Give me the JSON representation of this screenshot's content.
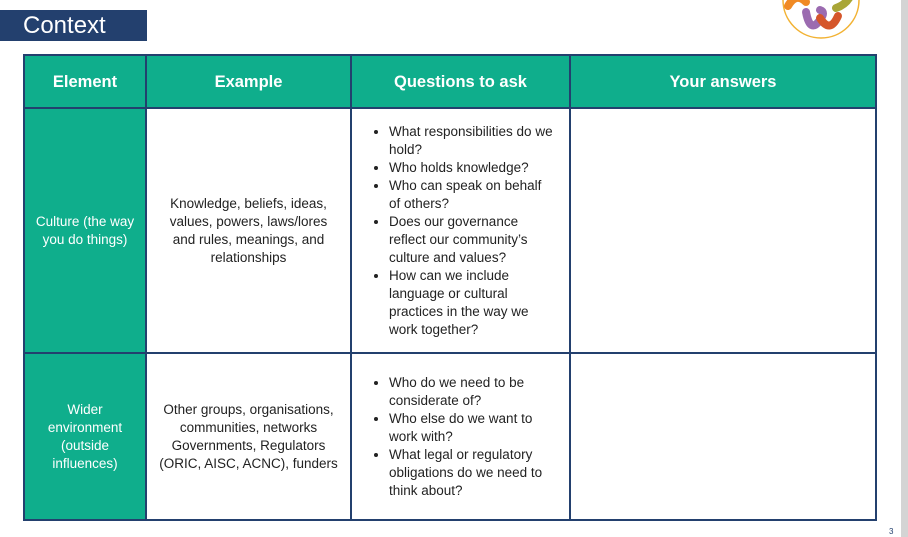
{
  "title": "Context",
  "page_number": "3",
  "colors": {
    "navy": "#23406e",
    "teal": "#0fae8c"
  },
  "table": {
    "headers": [
      "Element",
      "Example",
      "Questions to ask",
      "Your answers"
    ],
    "rows": [
      {
        "element": "Culture (the way you do things)",
        "example": "Knowledge, beliefs, ideas, values, powers, laws/lores and rules, meanings, and relationships",
        "questions": [
          "What responsibilities do we hold?",
          "Who holds knowledge?",
          "Who can speak on behalf of others?",
          "Does our governance reflect our community’s culture and values?",
          "How can we include language or cultural practices in the way we work together?"
        ],
        "answer": ""
      },
      {
        "element": "Wider environment (outside influences)",
        "example": "Other groups, organisations, communities, networks Governments, Regulators (ORIC, AISC, ACNC), funders",
        "questions": [
          "Who do we need to be considerate of?",
          "Who else do we want to work with?",
          "What legal or regulatory obligations do we need to think about?"
        ],
        "answer": ""
      }
    ]
  }
}
